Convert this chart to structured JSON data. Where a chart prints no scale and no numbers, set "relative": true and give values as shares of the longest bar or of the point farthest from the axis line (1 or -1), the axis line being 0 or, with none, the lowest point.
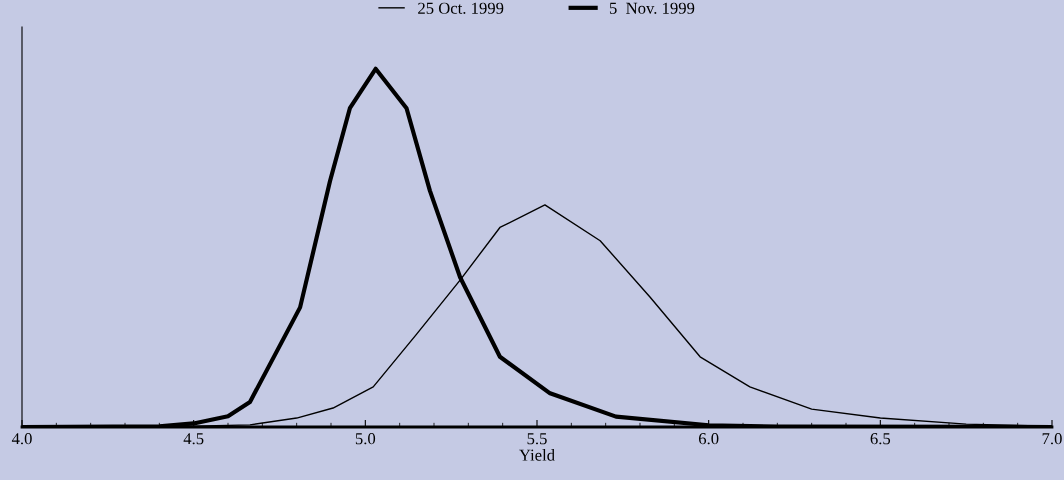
{
  "chart_data": {
    "type": "line",
    "relative": true,
    "xlabel": "Yield",
    "xlim": [
      4.0,
      7.0
    ],
    "xticks": [
      {
        "value": 4.0,
        "label": "4.0"
      },
      {
        "value": 4.5,
        "label": "4.5"
      },
      {
        "value": 5.0,
        "label": "5.0"
      },
      {
        "value": 5.5,
        "label": "5.5"
      },
      {
        "value": 6.0,
        "label": "6.0"
      },
      {
        "value": 6.5,
        "label": "6.5"
      },
      {
        "value": 7.0,
        "label": "7.0"
      }
    ],
    "legend": "top",
    "grid": false,
    "marker": "none",
    "line_style": "solid",
    "series": [
      {
        "name": "25 Oct. 1999",
        "color": "#000000",
        "x": [
          4.0,
          4.5,
          4.664,
          4.8,
          4.906,
          5.023,
          5.15,
          5.276,
          5.392,
          5.523,
          5.684,
          5.829,
          5.975,
          6.12,
          6.3,
          6.5,
          6.75,
          7.0
        ],
        "values": [
          0,
          0.002,
          0.006,
          0.025,
          0.053,
          0.112,
          0.26,
          0.41,
          0.557,
          0.62,
          0.52,
          0.363,
          0.196,
          0.112,
          0.05,
          0.025,
          0.008,
          0.002
        ]
      },
      {
        "name": "5  Nov. 1999",
        "color": "#000000",
        "x": [
          4.0,
          4.4,
          4.5,
          4.6,
          4.664,
          4.81,
          4.897,
          4.955,
          5.03,
          5.12,
          5.188,
          5.276,
          5.392,
          5.538,
          5.73,
          6.0,
          6.2,
          7.0
        ],
        "values": [
          0,
          0.002,
          0.01,
          0.03,
          0.07,
          0.334,
          0.686,
          0.89,
          1.0,
          0.89,
          0.66,
          0.418,
          0.196,
          0.094,
          0.029,
          0.005,
          0.001,
          0
        ]
      }
    ]
  }
}
